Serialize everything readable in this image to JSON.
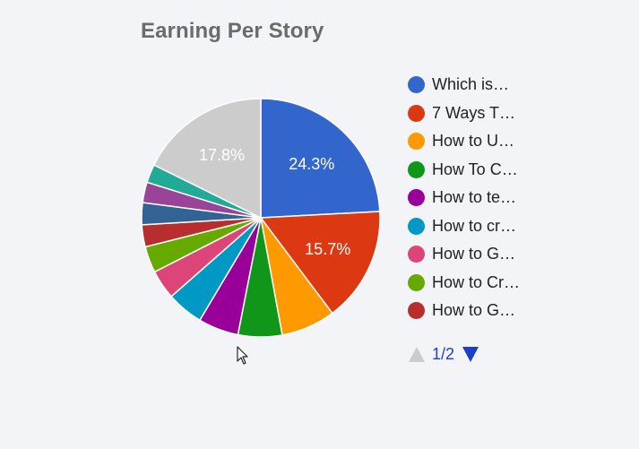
{
  "chart_data": {
    "type": "pie",
    "title": "Earning Per Story",
    "slices": [
      {
        "label": "Which is…",
        "value": 24.3,
        "color": "#3366cc",
        "show_label": "24.3%"
      },
      {
        "label": "7 Ways T…",
        "value": 15.7,
        "color": "#dc3912",
        "show_label": "15.7%"
      },
      {
        "label": "How to U…",
        "value": 7.4,
        "color": "#ff9900"
      },
      {
        "label": "How To C…",
        "value": 6.0,
        "color": "#109618"
      },
      {
        "label": "How to te…",
        "value": 5.5,
        "color": "#990099"
      },
      {
        "label": "How to cr…",
        "value": 5.0,
        "color": "#0099c6"
      },
      {
        "label": "How to G…",
        "value": 4.0,
        "color": "#dd4477"
      },
      {
        "label": "How to Cr…",
        "value": 3.6,
        "color": "#66aa00"
      },
      {
        "label": "How to G…",
        "value": 3.0,
        "color": "#b82e2e"
      },
      {
        "label": "",
        "value": 3.0,
        "color": "#316395"
      },
      {
        "label": "",
        "value": 2.8,
        "color": "#994499"
      },
      {
        "label": "",
        "value": 2.5,
        "color": "#22aa99"
      },
      {
        "label": "",
        "value": 17.8,
        "color": "#cccccc",
        "show_label": "17.8%"
      }
    ],
    "legend_visible_count": 9,
    "legend_position": "right"
  },
  "pager": {
    "text": "1/2",
    "prev_color": "#cccccc",
    "next_color": "#1c3fc8"
  }
}
